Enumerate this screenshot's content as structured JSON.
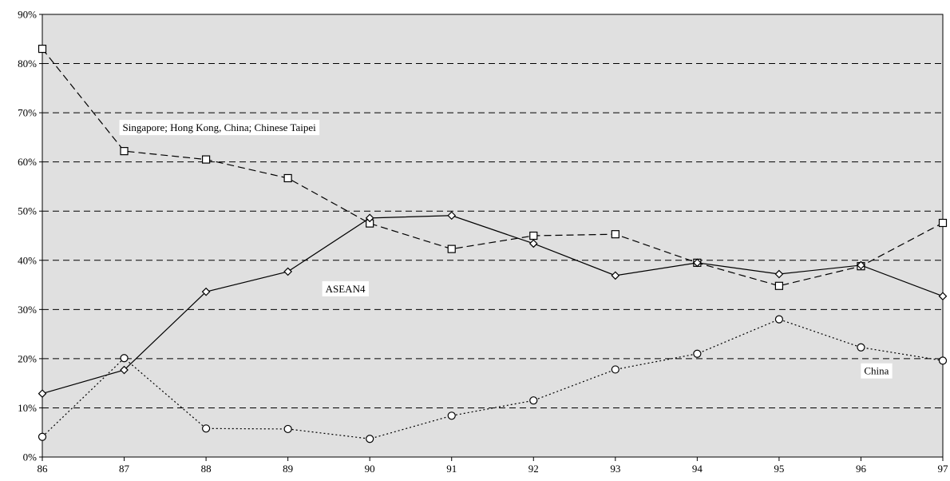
{
  "chart_data": {
    "type": "line",
    "title": "",
    "xlabel": "",
    "ylabel": "",
    "categories": [
      "86",
      "87",
      "88",
      "89",
      "90",
      "91",
      "92",
      "93",
      "94",
      "95",
      "96",
      "97"
    ],
    "ylim": [
      0,
      90
    ],
    "yticks": [
      0,
      10,
      20,
      30,
      40,
      50,
      60,
      70,
      80,
      90
    ],
    "ytick_labels": [
      "0%",
      "10%",
      "20%",
      "30%",
      "40%",
      "50%",
      "60%",
      "70%",
      "80%",
      "90%"
    ],
    "grid": "horizontal, dashed",
    "legend": "none",
    "series": [
      {
        "name": "Singapore; Hong Kong, China; Chinese Taipei",
        "values": [
          83.0,
          62.2,
          60.5,
          56.7,
          47.5,
          42.3,
          45.0,
          45.3,
          39.5,
          34.8,
          38.8,
          47.6
        ],
        "line_style": "dashed",
        "marker": "square",
        "label_at_index": 1
      },
      {
        "name": "ASEAN4",
        "values": [
          12.9,
          17.7,
          33.6,
          37.7,
          48.6,
          49.1,
          43.4,
          36.9,
          39.5,
          37.2,
          39.0,
          32.7
        ],
        "line_style": "solid",
        "marker": "diamond",
        "label_at_index": 3
      },
      {
        "name": "China",
        "values": [
          4.1,
          20.1,
          5.8,
          5.7,
          3.7,
          8.4,
          11.5,
          17.8,
          21.0,
          28.0,
          22.3,
          19.6
        ],
        "line_style": "dotted",
        "marker": "circle",
        "label_at_index": 8
      }
    ],
    "colors": {
      "plot_background": "#e0e0e0",
      "gridline": "#000000",
      "line": "#000000",
      "marker_fill": "#ffffff"
    }
  }
}
